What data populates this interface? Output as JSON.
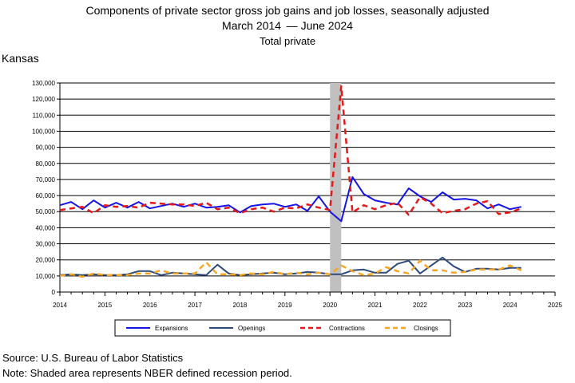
{
  "header": {
    "title": "Components of private sector gross job gains and job losses, seasonally adjusted",
    "subtitle_left": "March 2014",
    "subtitle_right": "June 2024",
    "subtitle_line": "Total private",
    "area": "Kansas"
  },
  "footer": {
    "source": "Source: U.S. Bureau of Labor Statistics",
    "note": "Note: Shaded area represents NBER defined recession period."
  },
  "colors": {
    "expansions": "#1414e6",
    "openings": "#2e4a7a",
    "contractions": "#e61919",
    "closings": "#f5a623",
    "recession": "#c0c0c0"
  },
  "chart_data": {
    "type": "line",
    "x_unit": "year (quarterly points, decimal year)",
    "xlim": [
      2014,
      2025
    ],
    "ylim": [
      0,
      130000
    ],
    "x_ticks": [
      "2014",
      "2015",
      "2016",
      "2017",
      "2018",
      "2019",
      "2020",
      "2021",
      "2022",
      "2023",
      "2024",
      "2025"
    ],
    "y_ticks": [
      "0",
      "10,000",
      "20,000",
      "30,000",
      "40,000",
      "50,000",
      "60,000",
      "70,000",
      "80,000",
      "90,000",
      "100,000",
      "110,000",
      "120,000",
      "130,000"
    ],
    "grid": "horizontal",
    "legend_position": "bottom",
    "recession": [
      2020.0,
      2020.25
    ],
    "x": [
      2014.0,
      2014.25,
      2014.5,
      2014.75,
      2015.0,
      2015.25,
      2015.5,
      2015.75,
      2016.0,
      2016.25,
      2016.5,
      2016.75,
      2017.0,
      2017.25,
      2017.5,
      2017.75,
      2018.0,
      2018.25,
      2018.5,
      2018.75,
      2019.0,
      2019.25,
      2019.5,
      2019.75,
      2020.0,
      2020.25,
      2020.5,
      2020.75,
      2021.0,
      2021.25,
      2021.5,
      2021.75,
      2022.0,
      2022.25,
      2022.5,
      2022.75,
      2023.0,
      2023.25,
      2023.5,
      2023.75,
      2024.0,
      2024.25
    ],
    "series": [
      {
        "name": "Expansions",
        "style": "solid",
        "width": 2,
        "values": [
          54000,
          56000,
          51500,
          57000,
          52500,
          55500,
          52500,
          56000,
          52000,
          53500,
          55000,
          53000,
          55000,
          52500,
          53000,
          54000,
          49500,
          53500,
          54500,
          55000,
          53000,
          54500,
          50500,
          59500,
          50000,
          44000,
          71500,
          61000,
          57000,
          55500,
          54500,
          64500,
          59500,
          56000,
          62000,
          57500,
          58000,
          57000,
          52000,
          54500,
          51500,
          53000
        ]
      },
      {
        "name": "Openings",
        "style": "solid",
        "width": 2,
        "values": [
          10500,
          11000,
          10500,
          11000,
          10500,
          10500,
          11000,
          13000,
          13000,
          10500,
          12000,
          11500,
          11000,
          10500,
          17000,
          11500,
          10500,
          11000,
          11500,
          12000,
          11000,
          11500,
          12500,
          12000,
          11000,
          11000,
          13500,
          14000,
          12000,
          12000,
          17500,
          19500,
          11500,
          16500,
          21500,
          16000,
          12500,
          14500,
          14500,
          14000,
          15000,
          15000
        ]
      },
      {
        "name": "Contractions",
        "style": "dash",
        "width": 2.5,
        "values": [
          51000,
          52000,
          53000,
          49000,
          54000,
          53000,
          53500,
          52500,
          55500,
          55000,
          54500,
          54500,
          53500,
          55500,
          51500,
          52500,
          49000,
          51500,
          52500,
          50000,
          52500,
          52000,
          54500,
          52500,
          51000,
          128000,
          49500,
          54000,
          51500,
          54000,
          55500,
          48000,
          59000,
          55000,
          49000,
          50500,
          51500,
          55000,
          56500,
          48500,
          49500,
          52000
        ]
      },
      {
        "name": "Closings",
        "style": "dash",
        "width": 2.5,
        "values": [
          10000,
          11000,
          9500,
          11500,
          10500,
          10500,
          10500,
          11500,
          11500,
          13500,
          11500,
          11500,
          11500,
          18500,
          11000,
          11000,
          10500,
          11500,
          11000,
          12500,
          11000,
          12000,
          11000,
          12000,
          11000,
          16500,
          13000,
          10500,
          11500,
          15500,
          13000,
          11500,
          19500,
          13500,
          13500,
          12000,
          12500,
          14000,
          14000,
          14000,
          16500,
          13500
        ]
      }
    ]
  }
}
